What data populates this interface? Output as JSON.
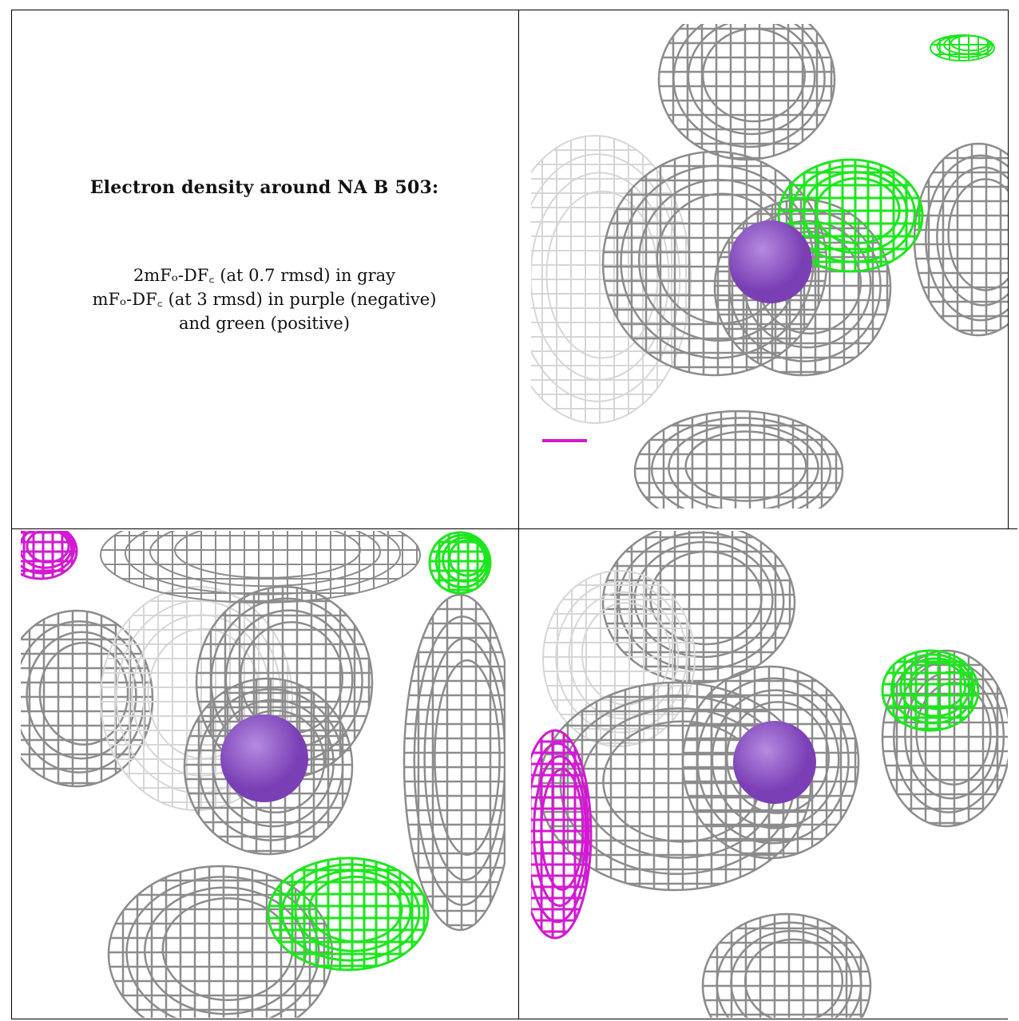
{
  "caption": {
    "title": "Electron density around NA B 503:",
    "line1": "2mFₒ-DF꜀ (at 0.7 rmsd) in gray",
    "line2": "mFₒ-DF꜀ (at 3 rmsd) in purple (negative)",
    "line3": "and green (positive)"
  },
  "colors": {
    "grid_line": "#000000",
    "mesh_2fofc": "#8c8c8c",
    "mesh_2fofc_light": "#d6d6d6",
    "fofc_negative": "#d21ad2",
    "fofc_positive": "#1ee61e",
    "sodium_atom": "#7a3fb5"
  },
  "panels": [
    {
      "name": "density-view-top-right"
    },
    {
      "name": "density-view-bottom-left"
    },
    {
      "name": "density-view-bottom-right"
    }
  ]
}
